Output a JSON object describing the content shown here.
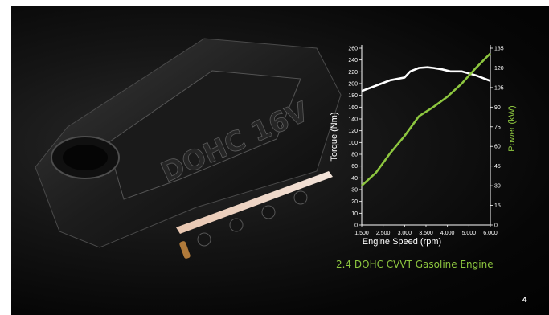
{
  "colors": {
    "torque": "#ffffff",
    "power": "#8dc63f",
    "background": "#0b0b0b"
  },
  "engine_badge": "DOHC 16V",
  "caption": "2.4 DOHC CVVT Gasoline Engine",
  "page_number": "4",
  "chart_data": {
    "type": "line",
    "xlabel": "Engine Speed (rpm)",
    "xlim": [
      1500,
      6000
    ],
    "x_ticks": [
      "1,500",
      "2,500",
      "3,000",
      "3,500",
      "4,000",
      "5,000",
      "6,000"
    ],
    "x_tick_values": [
      1500,
      2500,
      3000,
      3500,
      4000,
      5000,
      6000
    ],
    "left_axis": {
      "label": "Torque (Nm)",
      "ylim": [
        0,
        260
      ],
      "ticks": [
        "0",
        "10",
        "20",
        "30",
        "40",
        "60",
        "80",
        "100",
        "120",
        "140",
        "160",
        "180",
        "200",
        "220",
        "240",
        "260"
      ]
    },
    "right_axis": {
      "label": "Power (kW)",
      "ylim": [
        0,
        135
      ],
      "ticks": [
        "0",
        "15",
        "30",
        "45",
        "60",
        "75",
        "90",
        "105",
        "120",
        "135"
      ]
    },
    "series": [
      {
        "name": "Torque (Nm)",
        "axis": "left",
        "points": [
          [
            1500,
            197
          ],
          [
            2000,
            205
          ],
          [
            2500,
            213
          ],
          [
            3000,
            217
          ],
          [
            3200,
            226
          ],
          [
            3500,
            231
          ],
          [
            3800,
            232
          ],
          [
            4000,
            231
          ],
          [
            4300,
            229
          ],
          [
            4600,
            226
          ],
          [
            5000,
            226
          ],
          [
            5500,
            220
          ],
          [
            6000,
            212
          ]
        ]
      },
      {
        "name": "Power (kW)",
        "axis": "right",
        "points": [
          [
            1500,
            30
          ],
          [
            2000,
            40
          ],
          [
            2500,
            55
          ],
          [
            3000,
            68
          ],
          [
            3500,
            83
          ],
          [
            4000,
            90
          ],
          [
            4500,
            98
          ],
          [
            5000,
            108
          ],
          [
            5500,
            120
          ],
          [
            6000,
            131
          ]
        ]
      }
    ]
  }
}
